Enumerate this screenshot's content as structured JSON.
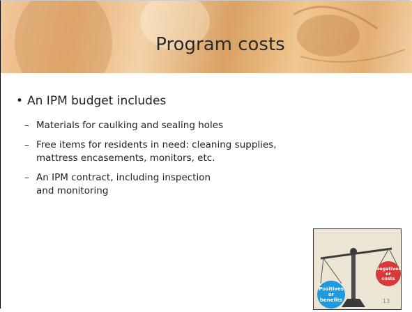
{
  "header": {
    "title": "Program costs"
  },
  "bullets": [
    {
      "text": "An IPM budget includes",
      "sub": [
        [
          "Materials for caulking and sealing holes"
        ],
        [
          "Free items for residents in need: cleaning supplies,",
          "mattress encasements, monitors, etc."
        ],
        [
          "An IPM contract, including inspection",
          "and monitoring"
        ]
      ]
    }
  ],
  "image": {
    "left_label": [
      "Positives",
      "or",
      "benefits"
    ],
    "right_label": [
      "Negatives",
      "or",
      "costs"
    ],
    "page_number": "13"
  }
}
